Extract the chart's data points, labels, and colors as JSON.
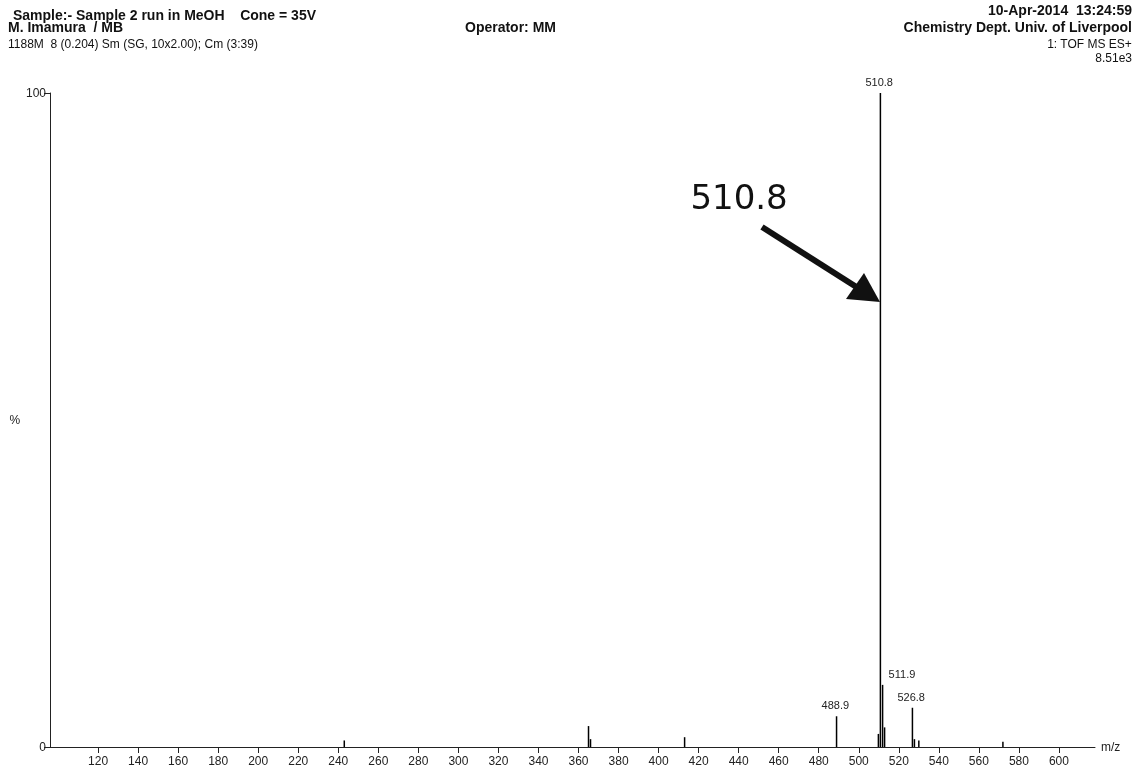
{
  "chart_data": {
    "type": "bar",
    "title": "Sample:- Sample 2 run in MeOH    Cone = 35V",
    "xlabel": "m/z",
    "ylabel": "%",
    "annotations": [
      "M. Imamura  / MB",
      "Operator: MM",
      "10-Apr-2014  13:24:59",
      "Chemistry Dept. Univ. of Liverpool",
      "1188M  8 (0.204) Sm (SG, 10x2.00); Cm (3:39)",
      "1: TOF MS ES+",
      "8.51e3",
      "510.8",
      {
        "text": "488.9",
        "x": 488.9,
        "y": 4.7
      },
      {
        "text": "510.8",
        "x": 510.8,
        "y": 100
      },
      {
        "text": "511.9",
        "x": 511.9,
        "y": 9.5
      },
      {
        "text": "526.8",
        "x": 526.8,
        "y": 6
      }
    ],
    "x": [
      243,
      365,
      366,
      413,
      488.9,
      509.8,
      510.8,
      511.9,
      512.9,
      526.8,
      527.8,
      530,
      572
    ],
    "values": [
      1,
      3.2,
      1.2,
      1.5,
      4.7,
      2,
      100,
      9.5,
      3,
      6,
      1.2,
      1,
      0.8
    ],
    "color": "#000000",
    "xlim": [
      96,
      618
    ],
    "xticks": [
      120,
      140,
      160,
      180,
      200,
      220,
      240,
      260,
      280,
      300,
      320,
      340,
      360,
      380,
      400,
      420,
      440,
      460,
      480,
      500,
      520,
      540,
      560,
      580,
      600
    ],
    "ylim": [
      0,
      100
    ],
    "yticks": [
      0,
      100
    ],
    "grid": false
  }
}
